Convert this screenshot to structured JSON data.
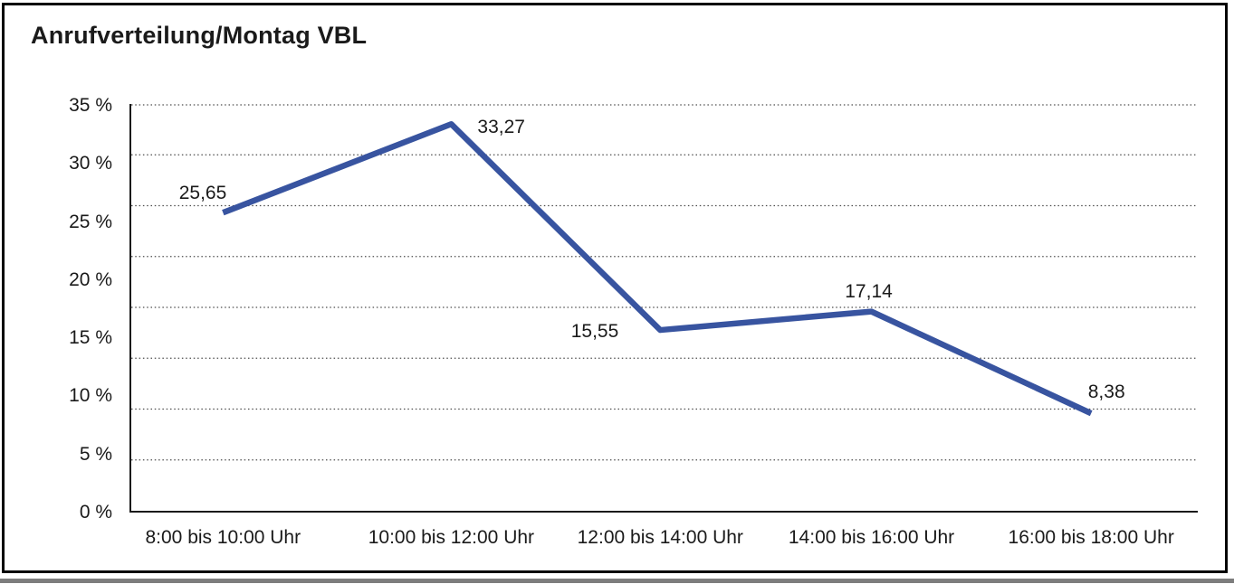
{
  "title": "Anrufverteilung/Montag VBL",
  "chart_data": {
    "type": "line",
    "title": "Anrufverteilung/Montag VBL",
    "categories": [
      "8:00 bis 10:00 Uhr",
      "10:00 bis 12:00 Uhr",
      "12:00 bis 14:00 Uhr",
      "14:00 bis 16:00 Uhr",
      "16:00 bis 18:00 Uhr"
    ],
    "values": [
      25.65,
      33.27,
      15.55,
      17.14,
      8.38
    ],
    "value_labels": [
      "25,65",
      "33,27",
      "15,55",
      "17,14",
      "8,38"
    ],
    "y_tick_labels": [
      "35 %",
      "30 %",
      "25 %",
      "20 %",
      "15 %",
      "10 %",
      "5 %",
      "0 %"
    ],
    "ylim": [
      0,
      35
    ],
    "y_tick_step": 5,
    "xlabel": "",
    "ylabel": "",
    "legend": "none",
    "grid": "horizontal-dotted",
    "gridline_count": 8,
    "line_color": "#3854A0",
    "grid_color": "#4d4d4d",
    "axis_color": "#1a1a1a",
    "frame_border_color": "#000000",
    "bottom_bar_color": "#7d7d7d",
    "decimal_separator": ","
  }
}
